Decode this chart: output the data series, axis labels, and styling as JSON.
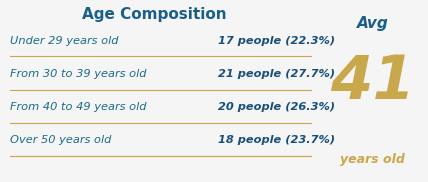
{
  "title": "Age Composition",
  "title_color": "#1a5f8a",
  "title_fontsize": 11,
  "rows": [
    {
      "label": "Under 29 years old",
      "value": "17 people (22.3%)"
    },
    {
      "label": "From 30 to 39 years old",
      "value": "21 people (27.7%)"
    },
    {
      "label": "From 40 to 49 years old",
      "value": "20 people (26.3%)"
    },
    {
      "label": "Over 50 years old",
      "value": "18 people (23.7%)"
    }
  ],
  "label_color": "#1a6b8a",
  "value_color": "#1a4f7a",
  "line_color": "#c9a84c",
  "avg_label": "Avg",
  "avg_value": "41",
  "avg_unit": "years old",
  "avg_label_color": "#1a5f8a",
  "avg_value_color": "#c9a84c",
  "avg_unit_color": "#c9a84c",
  "bg_color": "#f5f5f5"
}
